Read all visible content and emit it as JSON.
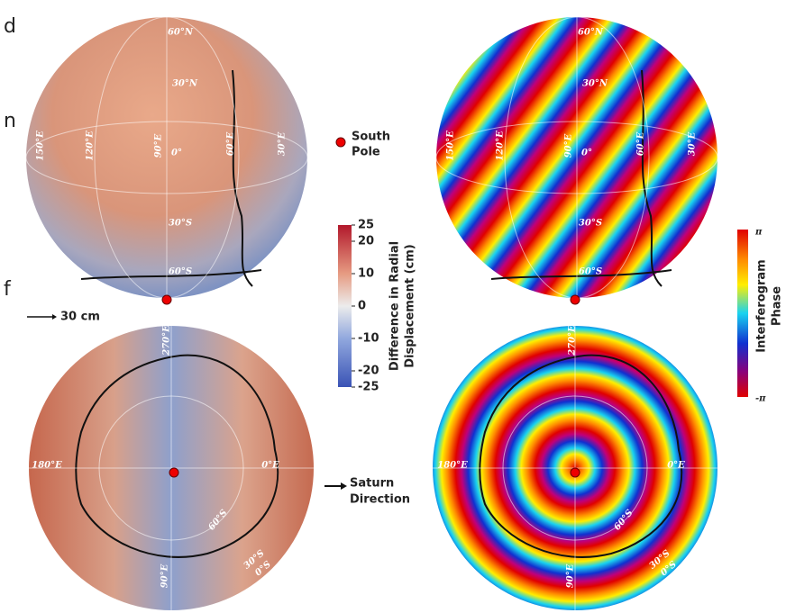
{
  "fragments": [
    "d",
    "n",
    "f"
  ],
  "globes": [
    {
      "labels": [
        "60°N",
        "30°N",
        "150°E",
        "120°E",
        "90°E",
        "0°",
        "60°E",
        "30°E",
        "30°S",
        "60°S"
      ]
    },
    {
      "labels": [
        "60°N",
        "30°N",
        "150°E",
        "120°E",
        "90°E",
        "0°",
        "60°E",
        "30°E",
        "30°S",
        "60°S"
      ]
    },
    {
      "labels": [
        "270°E",
        "180°E",
        "0°E",
        "60°S",
        "30°S",
        "0°S",
        "90°E"
      ]
    },
    {
      "labels": [
        "270°E",
        "180°E",
        "0°E",
        "60°S",
        "30°S",
        "0°S",
        "90°E"
      ]
    }
  ],
  "south_pole": [
    "South",
    "Pole"
  ],
  "scale": "30 cm",
  "saturn": [
    "Saturn",
    "Direction"
  ],
  "colorbar_displacement": {
    "label": [
      "Difference in Radial",
      "Displacement (cm)"
    ],
    "ticks": [
      25,
      20,
      10,
      0,
      -10,
      -20,
      -25
    ]
  },
  "colorbar_phase": {
    "label": [
      "Interferogram",
      "Phase"
    ],
    "ticks": [
      "π",
      "-π"
    ]
  }
}
